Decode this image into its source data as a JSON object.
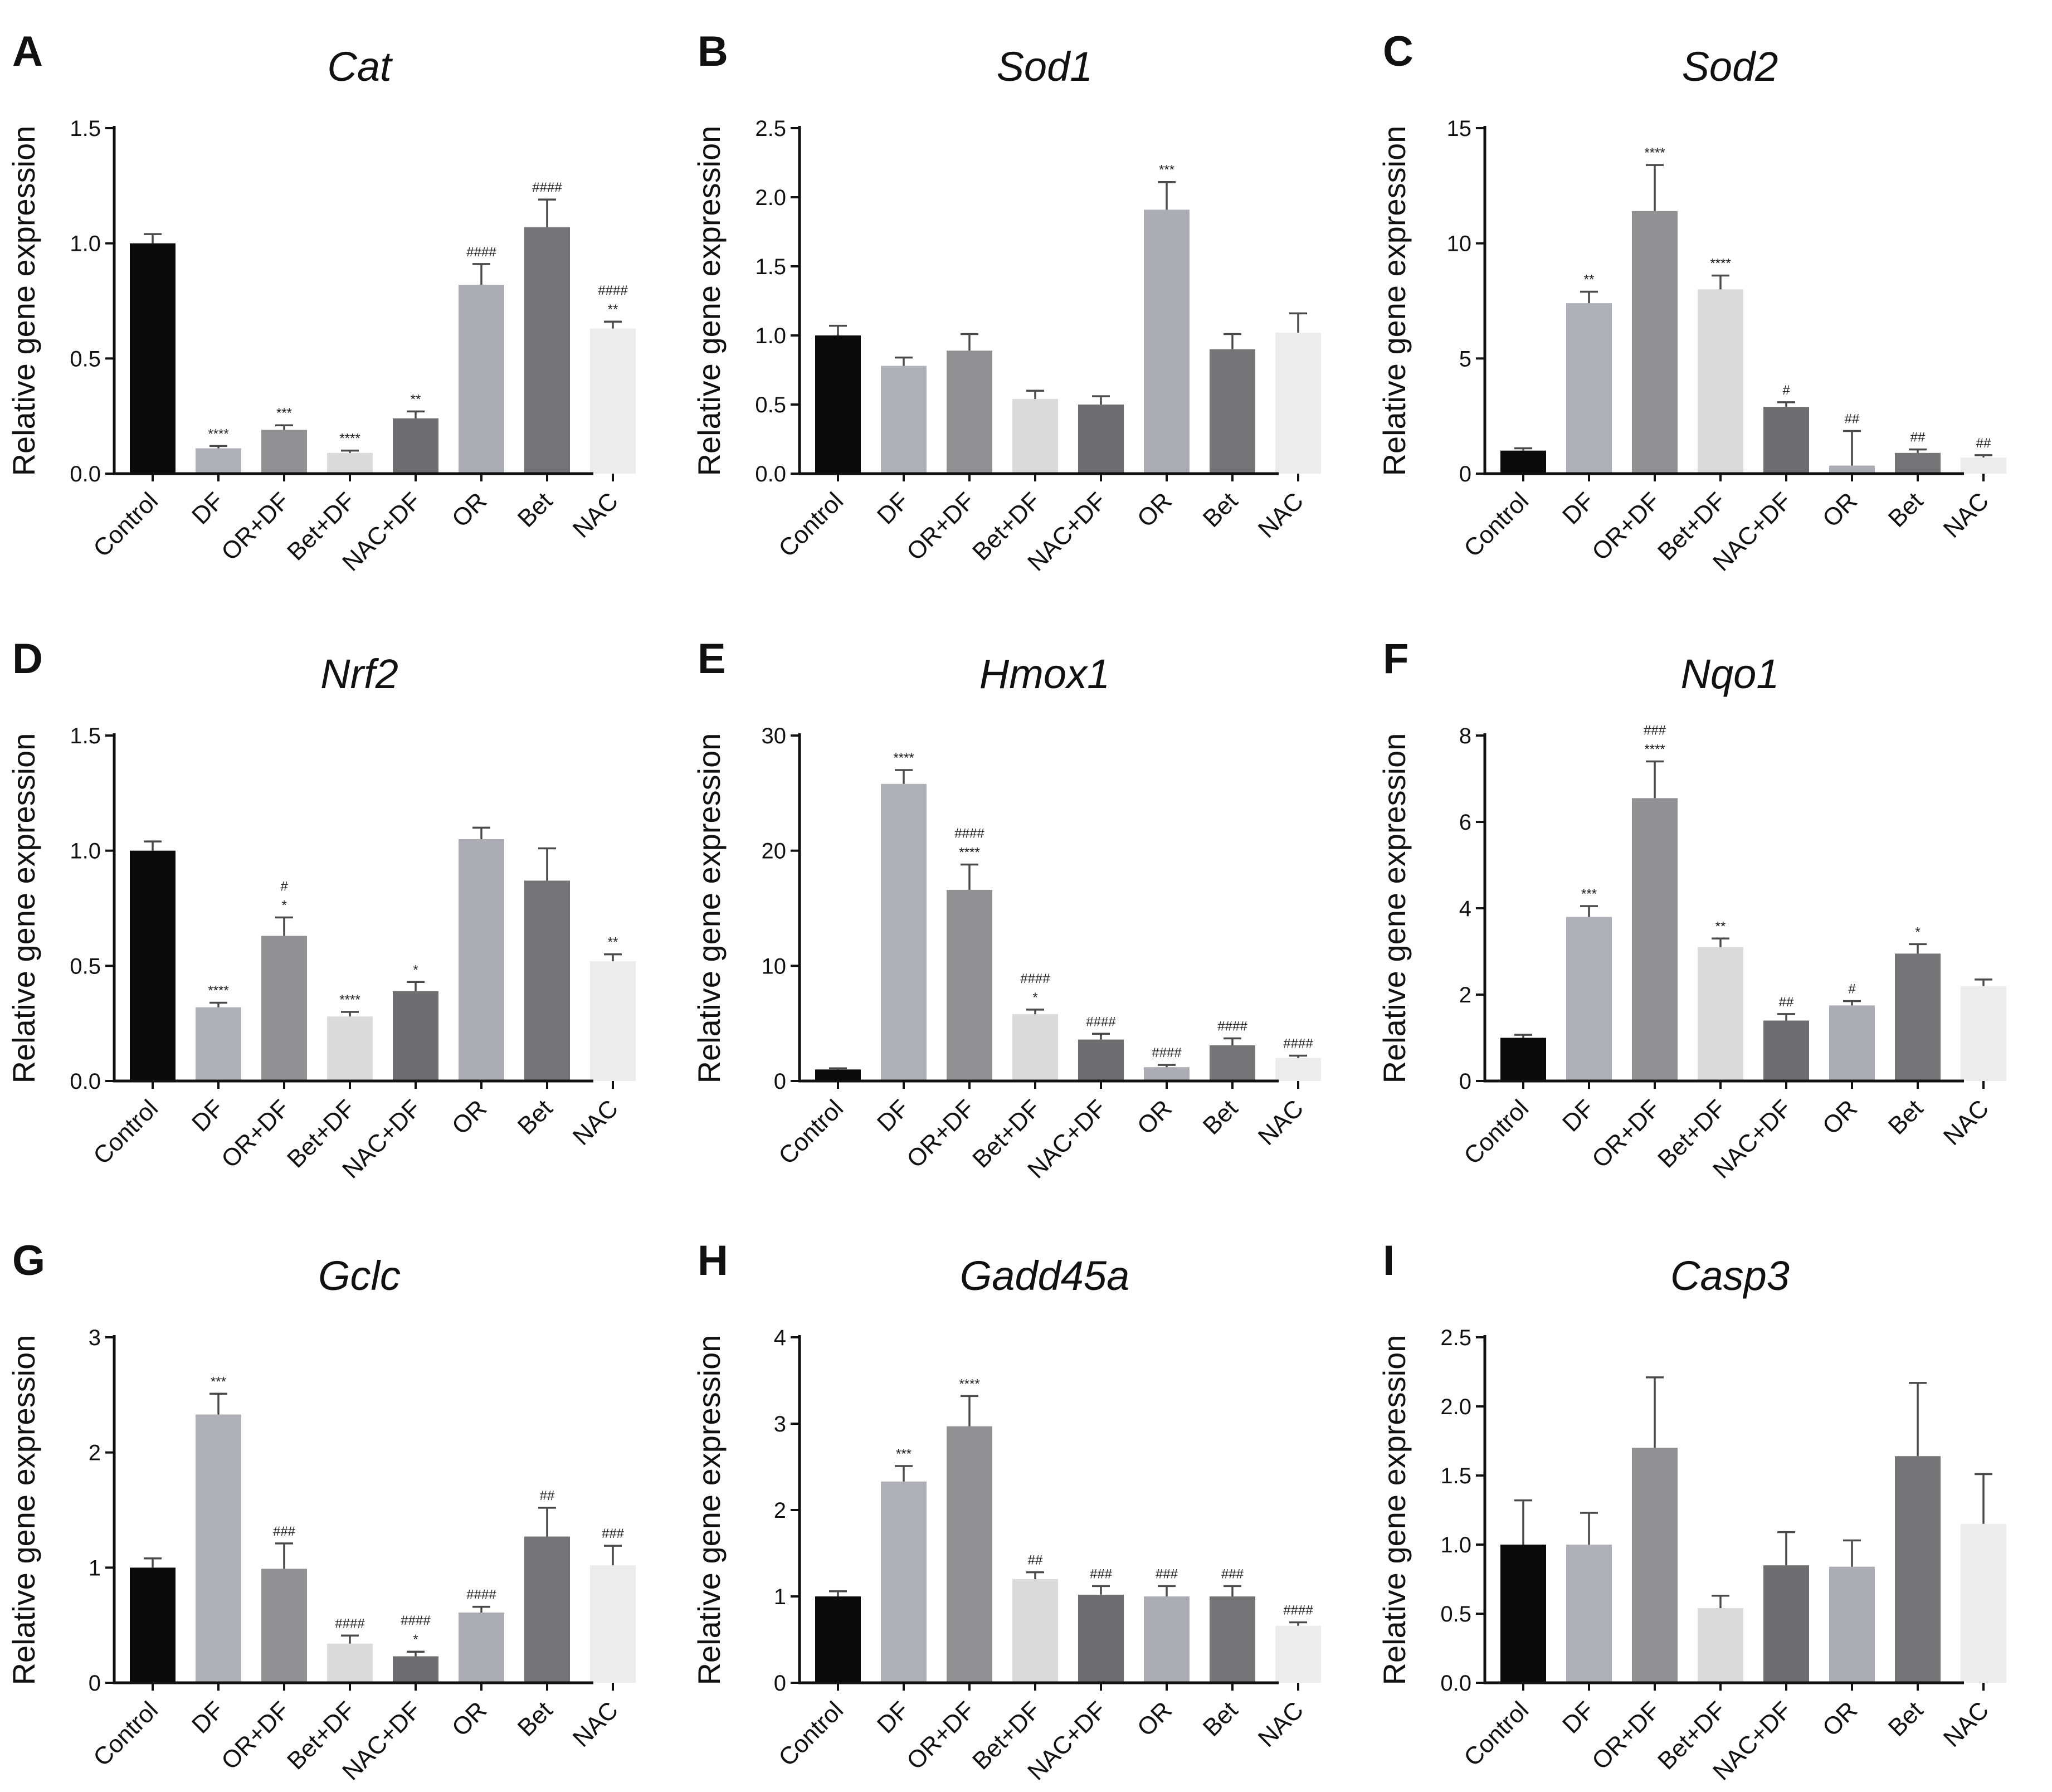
{
  "figure": {
    "y_axis_label": "Relative gene expression",
    "colors": {
      "Control": "#0a0a0a",
      "DF": "#b0b0b8",
      "OR+DF": "#919194",
      "Bet+DF": "#dadada",
      "NAC+DF": "#6e6e70",
      "OR": "#acacb4",
      "Bet": "#747476",
      "NAC": "#ececec"
    }
  },
  "chart_data": [
    {
      "panel": "A",
      "title": "Cat",
      "type": "bar",
      "ylabel": "Relative gene expression",
      "categories": [
        "Control",
        "DF",
        "OR+DF",
        "Bet+DF",
        "NAC+DF",
        "OR",
        "Bet",
        "NAC"
      ],
      "ylim": [
        0,
        1.5
      ],
      "yticks": [
        "0.0",
        "0.5",
        "1.0",
        "1.5"
      ],
      "values": [
        1.0,
        0.11,
        0.19,
        0.09,
        0.24,
        0.82,
        1.07,
        0.63
      ],
      "errors": [
        0.04,
        0.01,
        0.02,
        0.01,
        0.03,
        0.09,
        0.12,
        0.03
      ],
      "annotations": [
        [],
        [
          "****"
        ],
        [
          "***"
        ],
        [
          "****"
        ],
        [
          "**"
        ],
        [
          "####"
        ],
        [
          "####"
        ],
        [
          "####",
          "**"
        ]
      ]
    },
    {
      "panel": "B",
      "title": "Sod1",
      "type": "bar",
      "ylabel": "Relative gene expression",
      "categories": [
        "Control",
        "DF",
        "OR+DF",
        "Bet+DF",
        "NAC+DF",
        "OR",
        "Bet",
        "NAC"
      ],
      "ylim": [
        0,
        2.5
      ],
      "yticks": [
        "0.0",
        "0.5",
        "1.0",
        "1.5",
        "2.0",
        "2.5"
      ],
      "values": [
        1.0,
        0.78,
        0.89,
        0.54,
        0.5,
        1.91,
        0.9,
        1.02
      ],
      "errors": [
        0.07,
        0.06,
        0.12,
        0.06,
        0.06,
        0.2,
        0.11,
        0.14
      ],
      "annotations": [
        [],
        [],
        [],
        [],
        [],
        [
          "***"
        ],
        [],
        []
      ]
    },
    {
      "panel": "C",
      "title": "Sod2",
      "type": "bar",
      "ylabel": "Relative gene expression",
      "categories": [
        "Control",
        "DF",
        "OR+DF",
        "Bet+DF",
        "NAC+DF",
        "OR",
        "Bet",
        "NAC"
      ],
      "ylim": [
        0,
        15
      ],
      "yticks": [
        "0",
        "5",
        "10",
        "15"
      ],
      "values": [
        1.0,
        7.4,
        11.4,
        8.0,
        2.9,
        0.35,
        0.9,
        0.7
      ],
      "errors": [
        0.1,
        0.5,
        2.0,
        0.6,
        0.2,
        1.5,
        0.15,
        0.1
      ],
      "annotations": [
        [],
        [
          "**"
        ],
        [
          "****"
        ],
        [
          "****"
        ],
        [
          "#"
        ],
        [
          "##"
        ],
        [
          "##"
        ],
        [
          "##"
        ]
      ]
    },
    {
      "panel": "D",
      "title": "Nrf2",
      "type": "bar",
      "ylabel": "Relative gene expression",
      "categories": [
        "Control",
        "DF",
        "OR+DF",
        "Bet+DF",
        "NAC+DF",
        "OR",
        "Bet",
        "NAC"
      ],
      "ylim": [
        0,
        1.5
      ],
      "yticks": [
        "0.0",
        "0.5",
        "1.0",
        "1.5"
      ],
      "values": [
        1.0,
        0.32,
        0.63,
        0.28,
        0.39,
        1.05,
        0.87,
        0.52
      ],
      "errors": [
        0.04,
        0.02,
        0.08,
        0.02,
        0.04,
        0.05,
        0.14,
        0.03
      ],
      "annotations": [
        [],
        [
          "****"
        ],
        [
          "#",
          "*"
        ],
        [
          "****"
        ],
        [
          "*"
        ],
        [],
        [],
        [
          "**"
        ]
      ]
    },
    {
      "panel": "E",
      "title": "Hmox1",
      "type": "bar",
      "ylabel": "Relative gene expression",
      "categories": [
        "Control",
        "DF",
        "OR+DF",
        "Bet+DF",
        "NAC+DF",
        "OR",
        "Bet",
        "NAC"
      ],
      "ylim": [
        0,
        30
      ],
      "yticks": [
        "0",
        "10",
        "20",
        "30"
      ],
      "values": [
        1.0,
        25.8,
        16.6,
        5.8,
        3.6,
        1.2,
        3.1,
        2.0
      ],
      "errors": [
        0.1,
        1.2,
        2.2,
        0.4,
        0.5,
        0.2,
        0.6,
        0.2
      ],
      "annotations": [
        [],
        [
          "****"
        ],
        [
          "####",
          "****"
        ],
        [
          "####",
          "*"
        ],
        [
          "####"
        ],
        [
          "####"
        ],
        [
          "####"
        ],
        [
          "####"
        ]
      ]
    },
    {
      "panel": "F",
      "title": "Nqo1",
      "type": "bar",
      "ylabel": "Relative gene expression",
      "categories": [
        "Control",
        "DF",
        "OR+DF",
        "Bet+DF",
        "NAC+DF",
        "OR",
        "Bet",
        "NAC"
      ],
      "ylim": [
        0,
        8
      ],
      "yticks": [
        "0",
        "2",
        "4",
        "6",
        "8"
      ],
      "values": [
        1.0,
        3.8,
        6.55,
        3.1,
        1.4,
        1.75,
        2.95,
        2.2
      ],
      "errors": [
        0.07,
        0.25,
        0.85,
        0.2,
        0.15,
        0.1,
        0.22,
        0.15
      ],
      "annotations": [
        [],
        [
          "***"
        ],
        [
          "###",
          "****"
        ],
        [
          "**"
        ],
        [
          "##"
        ],
        [
          "#"
        ],
        [
          "*"
        ],
        []
      ]
    },
    {
      "panel": "G",
      "title": "Gclc",
      "type": "bar",
      "ylabel": "Relative gene expression",
      "categories": [
        "Control",
        "DF",
        "OR+DF",
        "Bet+DF",
        "NAC+DF",
        "OR",
        "Bet",
        "NAC"
      ],
      "ylim": [
        0,
        3
      ],
      "yticks": [
        "0",
        "1",
        "2",
        "3"
      ],
      "values": [
        1.0,
        2.33,
        0.99,
        0.34,
        0.23,
        0.61,
        1.27,
        1.02
      ],
      "errors": [
        0.08,
        0.18,
        0.22,
        0.07,
        0.04,
        0.05,
        0.25,
        0.17
      ],
      "annotations": [
        [],
        [
          "***"
        ],
        [
          "###"
        ],
        [
          "####"
        ],
        [
          "####",
          "*"
        ],
        [
          "####"
        ],
        [
          "##"
        ],
        [
          "###"
        ]
      ]
    },
    {
      "panel": "H",
      "title": "Gadd45a",
      "type": "bar",
      "ylabel": "Relative gene expression",
      "categories": [
        "Control",
        "DF",
        "OR+DF",
        "Bet+DF",
        "NAC+DF",
        "OR",
        "Bet",
        "NAC"
      ],
      "ylim": [
        0,
        4
      ],
      "yticks": [
        "0",
        "1",
        "2",
        "3",
        "4"
      ],
      "values": [
        1.0,
        2.33,
        2.97,
        1.2,
        1.02,
        1.0,
        1.0,
        0.66
      ],
      "errors": [
        0.06,
        0.18,
        0.35,
        0.08,
        0.1,
        0.12,
        0.12,
        0.04
      ],
      "annotations": [
        [],
        [
          "***"
        ],
        [
          "****"
        ],
        [
          "##"
        ],
        [
          "###"
        ],
        [
          "###"
        ],
        [
          "###"
        ],
        [
          "####"
        ]
      ]
    },
    {
      "panel": "I",
      "title": "Casp3",
      "type": "bar",
      "ylabel": "Relative gene expression",
      "categories": [
        "Control",
        "DF",
        "OR+DF",
        "Bet+DF",
        "NAC+DF",
        "OR",
        "Bet",
        "NAC"
      ],
      "ylim": [
        0,
        2.5
      ],
      "yticks": [
        "0.0",
        "0.5",
        "1.0",
        "1.5",
        "2.0",
        "2.5"
      ],
      "values": [
        1.0,
        1.0,
        1.7,
        0.54,
        0.85,
        0.84,
        1.64,
        1.15
      ],
      "errors": [
        0.32,
        0.23,
        0.51,
        0.09,
        0.24,
        0.19,
        0.53,
        0.36
      ],
      "annotations": [
        [],
        [],
        [],
        [],
        [],
        [],
        [],
        []
      ]
    }
  ]
}
